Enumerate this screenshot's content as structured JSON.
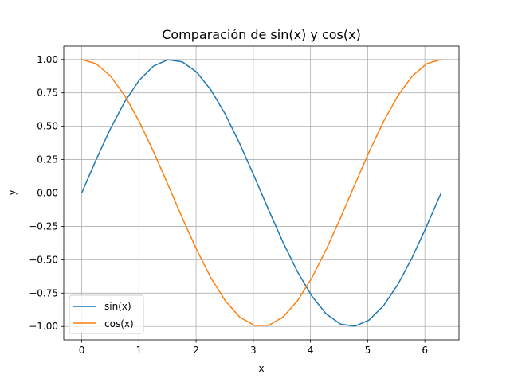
{
  "chart_data": {
    "type": "line",
    "title": "Comparación de sin(x) y cos(x)",
    "xlabel": "x",
    "ylabel": "y",
    "xlim": [
      -0.314,
      6.597
    ],
    "ylim": [
      -1.1,
      1.1
    ],
    "xticks": [
      0,
      1,
      2,
      3,
      4,
      5,
      6
    ],
    "xtick_labels": [
      "0",
      "1",
      "2",
      "3",
      "4",
      "5",
      "6"
    ],
    "yticks": [
      -1.0,
      -0.75,
      -0.5,
      -0.25,
      0.0,
      0.25,
      0.5,
      0.75,
      1.0
    ],
    "ytick_labels": [
      "−1.00",
      "−0.75",
      "−0.50",
      "−0.25",
      "0.00",
      "0.25",
      "0.50",
      "0.75",
      "1.00"
    ],
    "grid": true,
    "legend_position": "lower-left",
    "series": [
      {
        "name": "sin(x)",
        "color": "#1f77b4",
        "x": [
          0,
          0.2513,
          0.5027,
          0.754,
          1.0053,
          1.2566,
          1.508,
          1.7593,
          2.0106,
          2.2619,
          2.5133,
          2.7646,
          3.0159,
          3.2673,
          3.5186,
          3.7699,
          4.0212,
          4.2726,
          4.5239,
          4.7752,
          5.0265,
          5.2779,
          5.5292,
          5.7805,
          6.0319,
          6.2832
        ],
        "y": [
          0.0,
          0.2487,
          0.4818,
          0.6845,
          0.8443,
          0.9511,
          0.998,
          0.982,
          0.9048,
          0.7705,
          0.5878,
          0.3681,
          0.1253,
          -0.1253,
          -0.3681,
          -0.5878,
          -0.7705,
          -0.9048,
          -0.982,
          -0.998,
          -0.9511,
          -0.8443,
          -0.6845,
          -0.4818,
          -0.2487,
          0.0
        ]
      },
      {
        "name": "cos(x)",
        "color": "#ff7f0e",
        "x": [
          0,
          0.2513,
          0.5027,
          0.754,
          1.0053,
          1.2566,
          1.508,
          1.7593,
          2.0106,
          2.2619,
          2.5133,
          2.7646,
          3.0159,
          3.2673,
          3.5186,
          3.7699,
          4.0212,
          4.2726,
          4.5239,
          4.7752,
          5.0265,
          5.2779,
          5.5292,
          5.7805,
          6.0319,
          6.2832
        ],
        "y": [
          1.0,
          0.9686,
          0.8763,
          0.729,
          0.5358,
          0.309,
          0.0628,
          -0.1874,
          -0.4258,
          -0.6374,
          -0.809,
          -0.9298,
          -0.9921,
          -0.9921,
          -0.9298,
          -0.809,
          -0.6374,
          -0.4258,
          -0.1874,
          0.0628,
          0.309,
          0.5358,
          0.729,
          0.8763,
          0.9686,
          1.0
        ]
      }
    ]
  }
}
